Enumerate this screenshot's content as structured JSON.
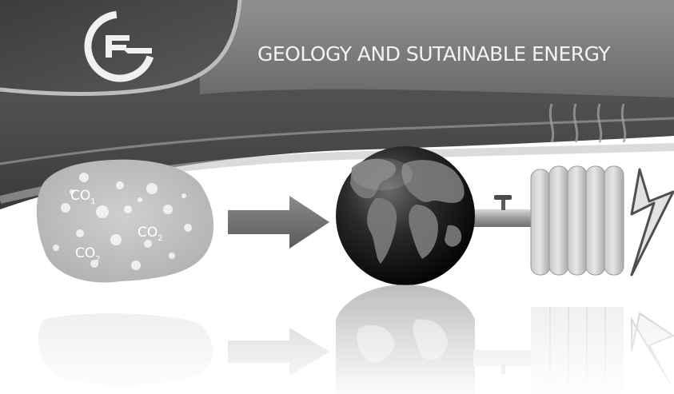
{
  "banner": {
    "title": "GEOLOGY AND SUTAINABLE ENERGY"
  },
  "cloud": {
    "labels": [
      {
        "main": "CO",
        "sub": "1"
      },
      {
        "main": "CO",
        "sub": "2"
      },
      {
        "main": "CO",
        "sub": "2"
      }
    ],
    "reflection_labels": [
      {
        "main": "CO",
        "sub": "1"
      },
      {
        "main": "CO",
        "sub": "1"
      }
    ]
  },
  "icons": [
    "logo-icon",
    "arrow-icon",
    "globe-icon",
    "valve-pipe-icon",
    "radiator-icon",
    "lightning-bolt-icon"
  ],
  "colors": {
    "banner_dark": "#555555",
    "banner_mid": "#7a7a7a",
    "logo_panel": "#4a4a4a",
    "globe_dark": "#0d0d0d",
    "arrow": "#6e6e6e",
    "radiator": "#cfcfcf"
  }
}
